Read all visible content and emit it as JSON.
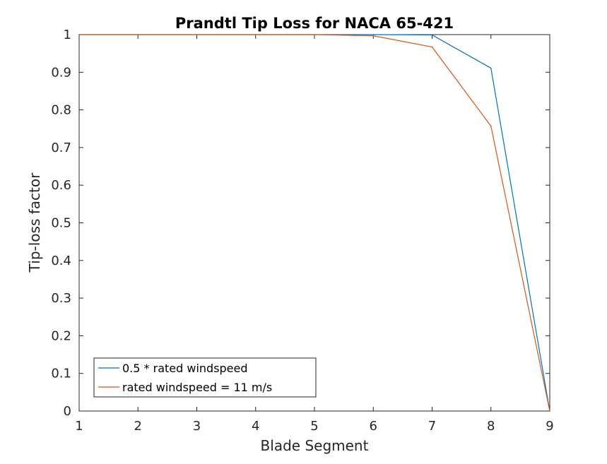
{
  "chart_data": {
    "type": "line",
    "title": "Prandtl Tip Loss for NACA 65-421",
    "xlabel": "Blade Segment",
    "ylabel": "Tip-loss factor",
    "xlim": [
      1,
      9
    ],
    "ylim": [
      0,
      1
    ],
    "xticks": [
      "1",
      "2",
      "3",
      "4",
      "5",
      "6",
      "7",
      "8",
      "9"
    ],
    "yticks": [
      "0",
      "0.1",
      "0.2",
      "0.3",
      "0.4",
      "0.5",
      "0.6",
      "0.7",
      "0.8",
      "0.9",
      "1"
    ],
    "x": [
      1,
      2,
      3,
      4,
      5,
      6,
      7,
      8,
      9
    ],
    "grid": false,
    "legend_position": "bottom-left",
    "series": [
      {
        "name": "0.5 * rated windspeed",
        "color": "#0072BD",
        "values": [
          1.0,
          1.0,
          1.0,
          1.0,
          1.0,
          1.0,
          0.999,
          0.911,
          0.0
        ]
      },
      {
        "name": "rated windspeed = 11 m/s",
        "color": "#D95319",
        "values": [
          1.0,
          1.0,
          1.0,
          1.0,
          1.0,
          0.997,
          0.967,
          0.757,
          0.0
        ]
      }
    ]
  }
}
